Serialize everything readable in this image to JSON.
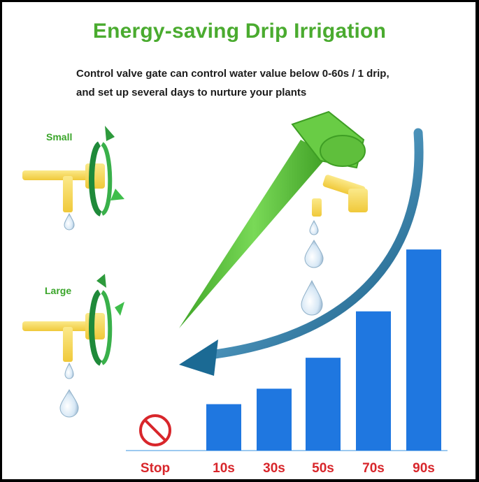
{
  "header": {
    "title": "Energy-saving Drip Irrigation",
    "subtitle_line1": "Control valve gate can control water value below 0-60s / 1 drip,",
    "subtitle_line2": "and set up several days to nurture your plants"
  },
  "valve_labels": {
    "small": "Small",
    "large": "Large"
  },
  "icons": [
    "stop-sign-icon",
    "rotate-arrow-icon",
    "water-drop-icon",
    "drip-spike-icon",
    "curved-arrow-icon"
  ],
  "colors": {
    "title_green": "#4aab2f",
    "bar_blue": "#1f77e0",
    "label_red": "#d8262b",
    "valve_yellow": "#f6d64a",
    "spike_green": "#5cc23a",
    "arrow_teal": "#1f6f96"
  },
  "chart_data": {
    "type": "bar",
    "categories": [
      "Stop",
      "10s",
      "30s",
      "50s",
      "70s",
      "90s"
    ],
    "values": [
      0,
      1.5,
      2.0,
      3.0,
      4.5,
      6.5
    ],
    "title": "",
    "xlabel": "",
    "ylabel": "",
    "ylim": [
      0,
      7
    ]
  }
}
